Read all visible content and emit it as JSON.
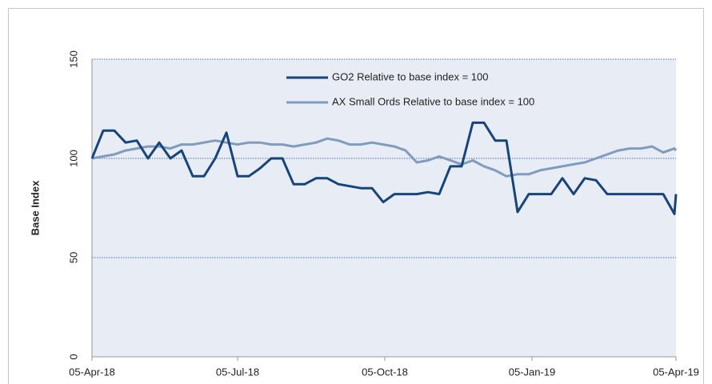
{
  "chart_data": {
    "type": "line",
    "ylabel": "Base  Index",
    "x": [
      "2018-04-05",
      "2018-04-12",
      "2018-04-19",
      "2018-04-26",
      "2018-05-03",
      "2018-05-10",
      "2018-05-17",
      "2018-05-24",
      "2018-05-31",
      "2018-06-07",
      "2018-06-14",
      "2018-06-21",
      "2018-06-28",
      "2018-07-05",
      "2018-07-12",
      "2018-07-19",
      "2018-07-26",
      "2018-08-02",
      "2018-08-09",
      "2018-08-16",
      "2018-08-23",
      "2018-08-30",
      "2018-09-06",
      "2018-09-13",
      "2018-09-20",
      "2018-09-27",
      "2018-10-04",
      "2018-10-11",
      "2018-10-18",
      "2018-10-25",
      "2018-11-01",
      "2018-11-08",
      "2018-11-15",
      "2018-11-22",
      "2018-11-29",
      "2018-12-06",
      "2018-12-13",
      "2018-12-20",
      "2018-12-27",
      "2019-01-03",
      "2019-01-10",
      "2019-01-17",
      "2019-01-24",
      "2019-01-31",
      "2019-02-07",
      "2019-02-14",
      "2019-02-21",
      "2019-02-28",
      "2019-03-07",
      "2019-03-14",
      "2019-03-21",
      "2019-03-28",
      "2019-04-04",
      "2019-04-05"
    ],
    "series": [
      {
        "name": "GO2 Relative to base index = 100",
        "color": "#17457a",
        "values": [
          100,
          114,
          114,
          108,
          109,
          100,
          108,
          100,
          104,
          91,
          91,
          100,
          113,
          91,
          91,
          95,
          100,
          100,
          87,
          87,
          90,
          90,
          87,
          86,
          85,
          85,
          78,
          82,
          82,
          82,
          83,
          82,
          96,
          96,
          118,
          118,
          109,
          109,
          73,
          82,
          82,
          82,
          90,
          82,
          90,
          89,
          82,
          82,
          82,
          82,
          82,
          82,
          72,
          82
        ]
      },
      {
        "name": "AX Small Ords Relative to base index = 100",
        "color": "#7f9cbf",
        "values": [
          100,
          101,
          102,
          104,
          105,
          106,
          106,
          105,
          107,
          107,
          108,
          109,
          108,
          107,
          108,
          108,
          107,
          107,
          106,
          107,
          108,
          110,
          109,
          107,
          107,
          108,
          107,
          106,
          104,
          98,
          99,
          101,
          99,
          97,
          99,
          96,
          94,
          91,
          92,
          92,
          94,
          95,
          96,
          97,
          98,
          100,
          102,
          104,
          105,
          105,
          106,
          103,
          105,
          104
        ]
      }
    ],
    "xlim": [
      "2018-04-05",
      "2019-04-05"
    ],
    "xticks": [
      {
        "value": "2018-04-05",
        "label": "05-Apr-18"
      },
      {
        "value": "2018-07-05",
        "label": "05-Jul-18"
      },
      {
        "value": "2018-10-05",
        "label": "05-Oct-18"
      },
      {
        "value": "2019-01-05",
        "label": "05-Jan-19"
      },
      {
        "value": "2019-04-05",
        "label": "05-Apr-19"
      }
    ],
    "ylim": [
      0,
      150
    ],
    "yticks": [
      0,
      50,
      100,
      150
    ],
    "grid": true,
    "legend": "upper center"
  }
}
